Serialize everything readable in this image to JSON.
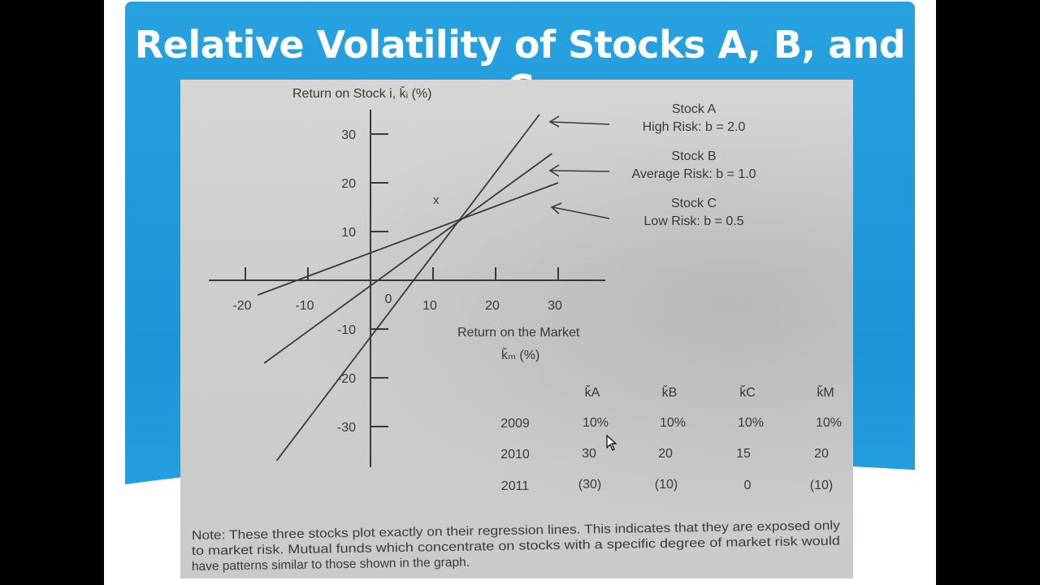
{
  "slide": {
    "title": "Relative Volatility of Stocks A, B, and C"
  },
  "chart_data": {
    "type": "line",
    "ylabel": "Return on Stock i, ǩᵢ (%)",
    "xlabel_line1": "Return on the Market",
    "xlabel_line2": "ǩₘ (%)",
    "x_ticks": [
      "-20",
      "-10",
      "0",
      "10",
      "20",
      "30"
    ],
    "y_ticks": [
      "30",
      "20",
      "10",
      "-10",
      "-20",
      "-30"
    ],
    "x_tick_values": [
      -20,
      -10,
      0,
      10,
      20,
      30
    ],
    "y_tick_values": [
      30,
      20,
      10,
      -10,
      -20,
      -30
    ],
    "xlim": [
      -25,
      37
    ],
    "ylim": [
      -35,
      36
    ],
    "series": [
      {
        "name": "Stock A",
        "risk": "High Risk: b = 2.0",
        "beta": 2.0,
        "x": [
          -15,
          27
        ],
        "y": [
          -37,
          34
        ]
      },
      {
        "name": "Stock B",
        "risk": "Average Risk: b = 1.0",
        "beta": 1.0,
        "x": [
          -17,
          29
        ],
        "y": [
          -17,
          26
        ]
      },
      {
        "name": "Stock C",
        "risk": "Low Risk: b = 0.5",
        "beta": 0.5,
        "x": [
          -18,
          30
        ],
        "y": [
          -3,
          20
        ]
      }
    ],
    "annotation": "x",
    "table": {
      "headers": [
        "ǩA",
        "ǩB",
        "ǩC",
        "ǩM"
      ],
      "rows": [
        {
          "year": "2009",
          "values": [
            "10%",
            "10%",
            "10%",
            "10%"
          ]
        },
        {
          "year": "2010",
          "values": [
            "30",
            "20",
            "15",
            "20"
          ]
        },
        {
          "year": "2011",
          "values": [
            "(30)",
            "(10)",
            "0",
            "(10)"
          ]
        }
      ]
    }
  },
  "note": {
    "line1": "Note: These three stocks plot exactly on their regression lines. This indicates that they are exposed only",
    "line2": "to market risk. Mutual funds which concentrate on stocks with a specific degree of market risk would",
    "line3": "have patterns similar to those shown in the graph."
  },
  "colors": {
    "title_bar": "#1d94d6",
    "ink": "#3a3b3d",
    "paper": "#d2d4d2"
  }
}
